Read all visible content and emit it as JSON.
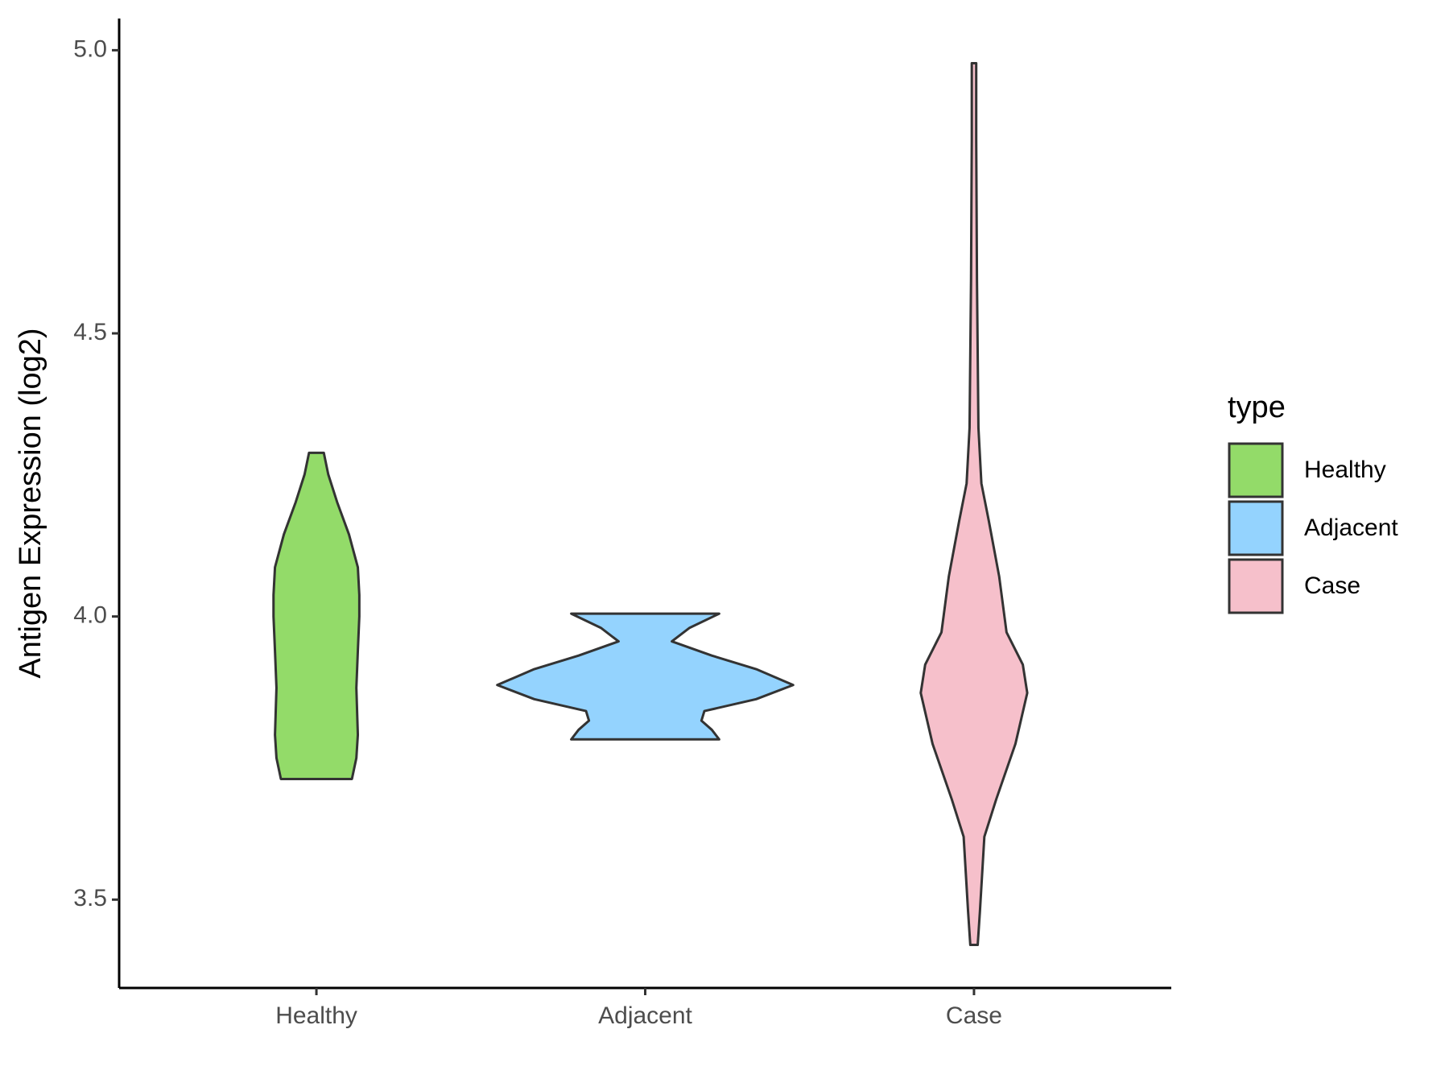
{
  "chart_data": {
    "type": "violin",
    "y_label": "Antigen Expression (log2)",
    "legend_title": "type",
    "categories": [
      "Healthy",
      "Adjacent",
      "Case"
    ],
    "ylim": [
      3.344,
      5.056
    ],
    "yticks": [
      {
        "value": 3.5,
        "label": "3.5"
      },
      {
        "value": 4,
        "label": "4.0"
      },
      {
        "value": 4.5,
        "label": "4.5"
      },
      {
        "value": 5,
        "label": "5.0"
      }
    ],
    "series": [
      {
        "name": "Healthy",
        "color": "#93db69",
        "y": [
          4.289,
          4.251,
          4.202,
          4.145,
          4.087,
          4.038,
          4.0,
          3.939,
          3.874,
          3.791,
          3.75,
          3.713
        ],
        "widths": [
          0.05,
          0.08,
          0.14,
          0.22,
          0.28,
          0.29,
          0.29,
          0.28,
          0.27,
          0.28,
          0.27,
          0.24
        ]
      },
      {
        "name": "Adjacent",
        "color": "#94d3fe",
        "y": [
          4.005,
          3.98,
          3.956,
          3.931,
          3.907,
          3.879,
          3.854,
          3.833,
          3.816,
          3.8,
          3.783
        ],
        "widths": [
          0.5,
          0.3,
          0.18,
          0.45,
          0.75,
          1.0,
          0.75,
          0.4,
          0.38,
          0.45,
          0.5
        ]
      },
      {
        "name": "Case",
        "color": "#f6c0cb",
        "y": [
          4.977,
          4.842,
          4.596,
          4.333,
          4.235,
          4.169,
          4.071,
          3.972,
          3.915,
          3.865,
          3.775,
          3.677,
          3.611,
          3.479,
          3.42
        ],
        "widths": [
          0.015,
          0.015,
          0.02,
          0.03,
          0.05,
          0.1,
          0.17,
          0.22,
          0.33,
          0.36,
          0.28,
          0.15,
          0.07,
          0.04,
          0.025
        ]
      }
    ]
  }
}
